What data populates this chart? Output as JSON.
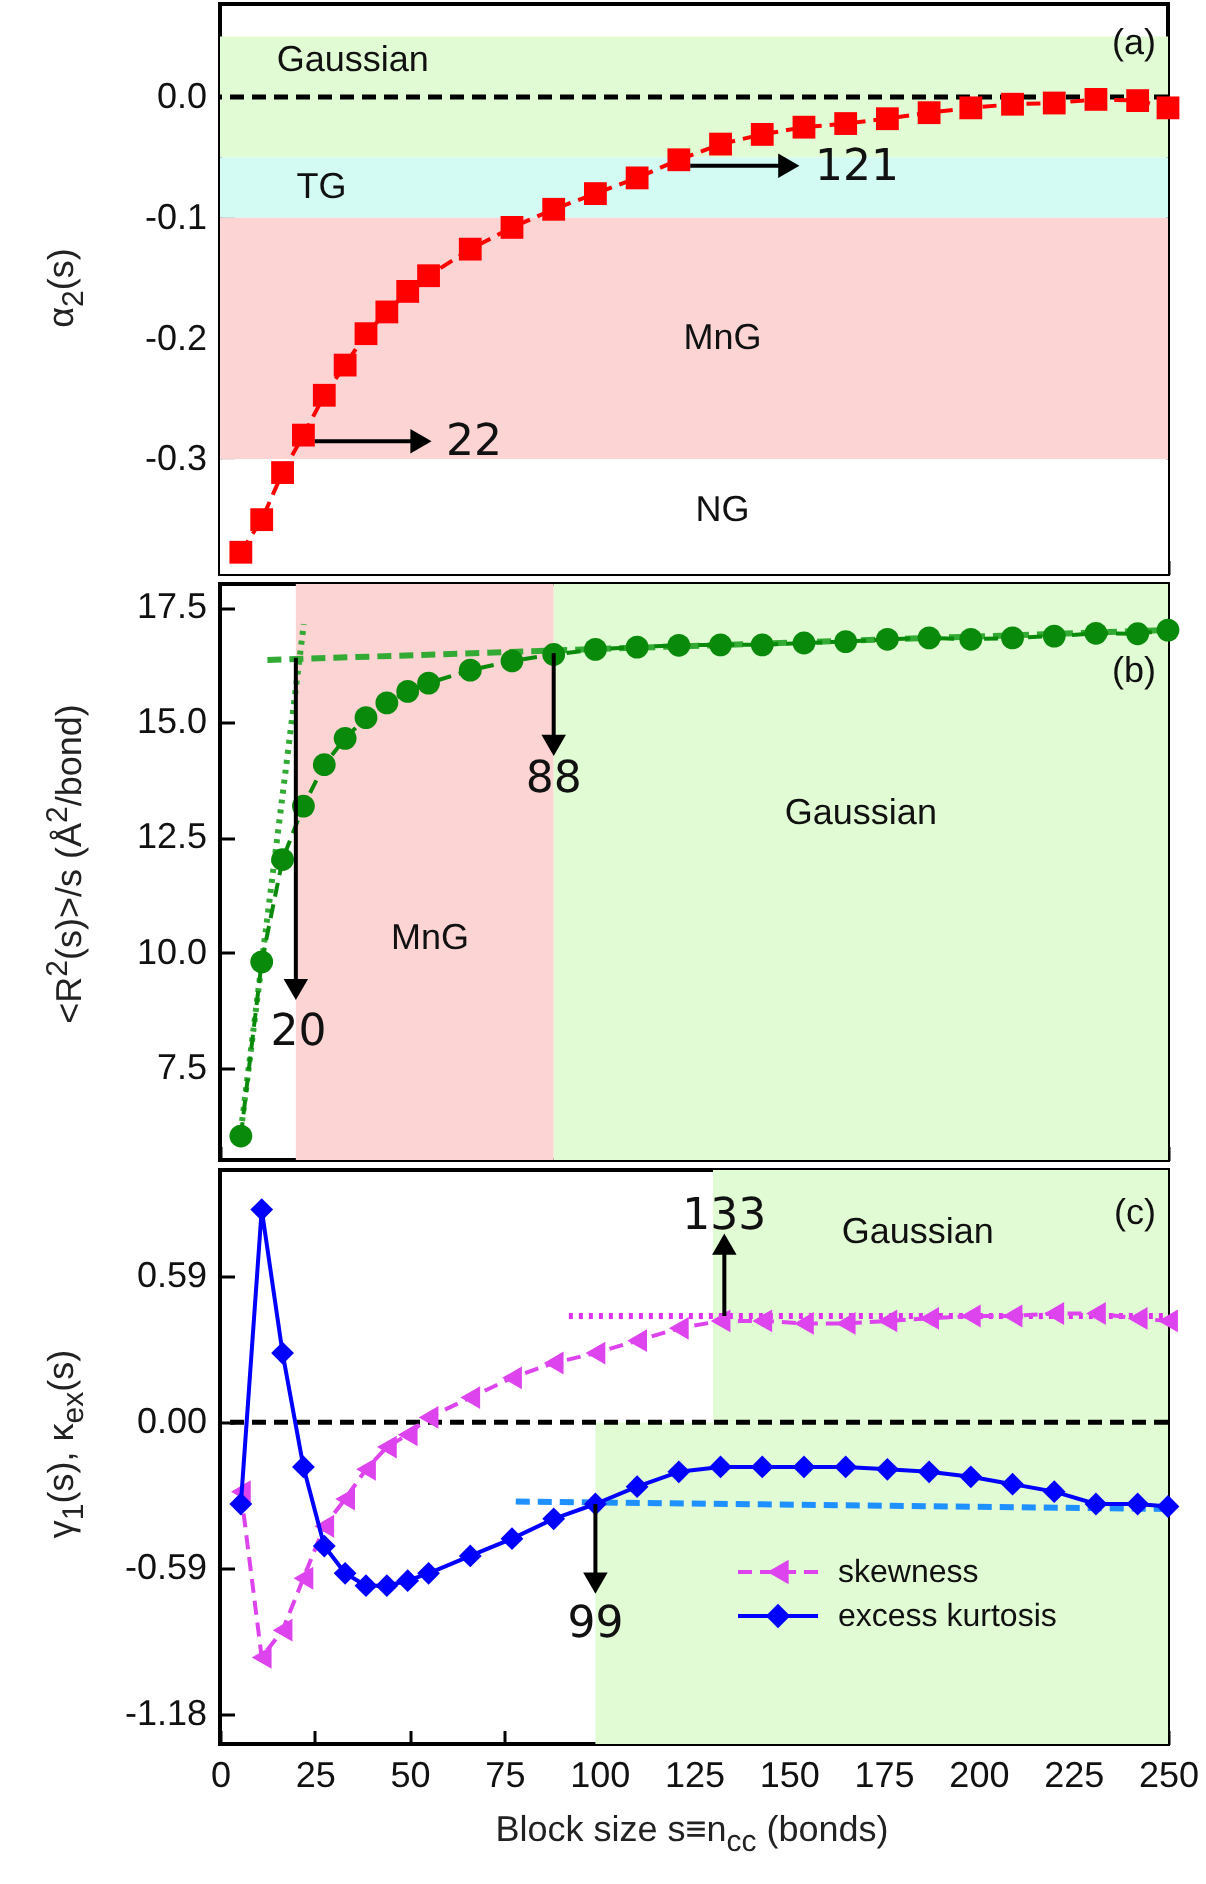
{
  "chart_data": [
    {
      "type": "line",
      "ylabel": "α$_{2}$(s)",
      "x": [
        5.5,
        11,
        16.5,
        22,
        27.5,
        33,
        38.5,
        44,
        49.5,
        55,
        66,
        77,
        88,
        99,
        110,
        121,
        132,
        143,
        154,
        165,
        176,
        187,
        198,
        209,
        220,
        231,
        242,
        250
      ],
      "series": [
        {
          "color": "#ff0000",
          "values": [
            -0.377,
            -0.35,
            -0.311,
            -0.28,
            -0.247,
            -0.222,
            -0.196,
            -0.178,
            -0.161,
            -0.148,
            -0.126,
            -0.108,
            -0.093,
            -0.08,
            -0.067,
            -0.052,
            -0.039,
            -0.031,
            -0.025,
            -0.022,
            -0.018,
            -0.013,
            -0.009,
            -0.006,
            -0.005,
            -0.002,
            -0.003,
            -0.009
          ]
        }
      ],
      "marker": "square",
      "line_style": "dashed",
      "xlim": [
        0,
        250
      ],
      "xticks": [
        0,
        25,
        50,
        75,
        100,
        125,
        150,
        175,
        200,
        225,
        250
      ],
      "ylim": [
        -0.395,
        0.077
      ],
      "yticks": [
        -0.3,
        -0.2,
        -0.1,
        {
          "value": 0,
          "label": "0.0"
        }
      ],
      "tick_labels": "y",
      "ref_lines": [
        {
          "axis": "y",
          "value": 0,
          "color": "#000000",
          "line_style": "dashed"
        }
      ],
      "bands": [
        {
          "axis": "y",
          "from": -0.05,
          "to": 0.05,
          "label": "Gaussian",
          "color": "#e1fbd5"
        },
        {
          "axis": "y",
          "from": -0.1,
          "to": -0.05,
          "label": "TG",
          "color": "#d3fbf3"
        },
        {
          "axis": "y",
          "from": -0.3,
          "to": -0.1,
          "label": "MnG",
          "color": "#fdd4d4"
        },
        {
          "axis": "y",
          "from": -0.395,
          "to": -0.3,
          "label": "NG",
          "color": "#ffffff"
        }
      ],
      "annotations": [
        "(a)",
        {
          "text": "22",
          "x": 22,
          "y": -0.28
        },
        {
          "text": "121",
          "x": 121,
          "y": -0.052
        }
      ]
    },
    {
      "type": "line",
      "ylabel": "<R$^{2}$(s)>/s  (Å$^{2}$/bond)",
      "x": [
        5.5,
        11,
        16.5,
        22,
        27.5,
        33,
        38.5,
        44,
        49.5,
        55,
        66,
        77,
        88,
        99,
        110,
        121,
        132,
        143,
        154,
        165,
        176,
        187,
        198,
        209,
        220,
        231,
        242,
        250
      ],
      "series": [
        {
          "type": "line",
          "color": "#33aa33",
          "x": [
            5.5,
            22.1
          ],
          "values": [
            6.13,
            17.13
          ],
          "line_style": "dotted",
          "marker": "none"
        },
        {
          "type": "line",
          "color": "#33aa33",
          "x": [
            12.5,
            250
          ],
          "values": [
            16.35,
            17.0
          ],
          "line_style": "dashed",
          "marker": "none"
        },
        {
          "color": "#0a8a0a",
          "values": [
            6.02,
            9.8,
            12.02,
            13.18,
            14.08,
            14.65,
            15.1,
            15.42,
            15.67,
            15.85,
            16.13,
            16.33,
            16.47,
            16.58,
            16.63,
            16.67,
            16.68,
            16.68,
            16.72,
            16.75,
            16.8,
            16.83,
            16.8,
            16.83,
            16.87,
            16.93,
            16.92,
            17.0
          ]
        }
      ],
      "marker": "circle",
      "line_style": "dashed",
      "xlim": [
        0,
        250
      ],
      "xticks": [
        0,
        25,
        50,
        75,
        100,
        125,
        150,
        175,
        200,
        225,
        250
      ],
      "ylim": [
        5.5,
        18
      ],
      "yticks": [
        7.5,
        {
          "value": 10,
          "label": "10.0"
        },
        12.5,
        {
          "value": 15,
          "label": "15.0"
        },
        17.5
      ],
      "tick_labels": "y",
      "bands": [
        {
          "axis": "x",
          "from": 20,
          "to": 88,
          "label": "MnG",
          "color": "#fdd4d4"
        },
        {
          "axis": "x",
          "from": 88,
          "to": 250,
          "label": "Gaussian",
          "color": "#e1fbd5"
        }
      ],
      "annotations": [
        "(b)",
        {
          "text": "20",
          "x": 20,
          "y": 16.4
        },
        {
          "text": "88",
          "x": 88,
          "y": 16.5
        }
      ]
    },
    {
      "type": "line",
      "xlabel": "Block size s≡n$_{cc}$ (bonds)",
      "ylabel": "γ$_{1}$(s), κ$_{ex}$(s)",
      "x": [
        5.5,
        11,
        16.5,
        22,
        27.5,
        33,
        38.5,
        44,
        49.5,
        55,
        66,
        77,
        88,
        99,
        110,
        121,
        132,
        143,
        154,
        165,
        176,
        187,
        198,
        209,
        220,
        231,
        242,
        250
      ],
      "series": [
        {
          "type": "line",
          "color": "#dd33ee",
          "x": [
            92,
            250
          ],
          "values": [
            0.43,
            0.43
          ],
          "line_style": "dotted",
          "marker": "none"
        },
        {
          "type": "line",
          "color": "#1e90ff",
          "x": [
            78,
            250
          ],
          "values": [
            -0.32,
            -0.35
          ],
          "line_style": "dashed",
          "marker": "none"
        },
        {
          "name": "skewness",
          "color": "#dd44ee",
          "marker": "triangle",
          "line_style": "dashed",
          "values": [
            -0.28,
            -0.95,
            -0.84,
            -0.63,
            -0.42,
            -0.31,
            -0.19,
            -0.1,
            -0.05,
            0.02,
            0.1,
            0.18,
            0.24,
            0.28,
            0.33,
            0.38,
            0.41,
            0.41,
            0.4,
            0.4,
            0.41,
            0.42,
            0.43,
            0.43,
            0.44,
            0.44,
            0.42,
            0.41
          ]
        },
        {
          "name": "excess kurtosis",
          "color": "#0000ff",
          "marker": "diamond",
          "line_style": "solid",
          "values": [
            -0.33,
            0.86,
            0.28,
            -0.18,
            -0.5,
            -0.61,
            -0.66,
            -0.66,
            -0.64,
            -0.61,
            -0.54,
            -0.47,
            -0.39,
            -0.33,
            -0.26,
            -0.2,
            -0.18,
            -0.18,
            -0.18,
            -0.18,
            -0.19,
            -0.2,
            -0.22,
            -0.25,
            -0.28,
            -0.33,
            -0.33,
            -0.34
          ]
        }
      ],
      "xlim": [
        0,
        250
      ],
      "xticks": [
        0,
        25,
        50,
        75,
        100,
        125,
        150,
        175,
        200,
        225,
        250
      ],
      "ylim": [
        -1.3,
        1.02
      ],
      "yticks": [
        -1.18,
        -0.59,
        {
          "value": 0,
          "label": "0.00"
        },
        0.59
      ],
      "ref_lines": [
        {
          "axis": "y",
          "value": 0,
          "color": "#000000",
          "line_style": "dashed"
        }
      ],
      "bands": [
        {
          "axis": "x",
          "from": 130,
          "to": 250,
          "label": "Gaussian",
          "color": "#e1fbd5"
        },
        {
          "axis": "x",
          "from": 99,
          "to": 250,
          "color": "#e1fbd5"
        }
      ],
      "legend": "bottom right",
      "annotations": [
        "(c)",
        {
          "text": "133",
          "x": 133,
          "y": 0.42
        },
        {
          "text": "99",
          "x": 99,
          "y": -0.33
        }
      ]
    }
  ]
}
